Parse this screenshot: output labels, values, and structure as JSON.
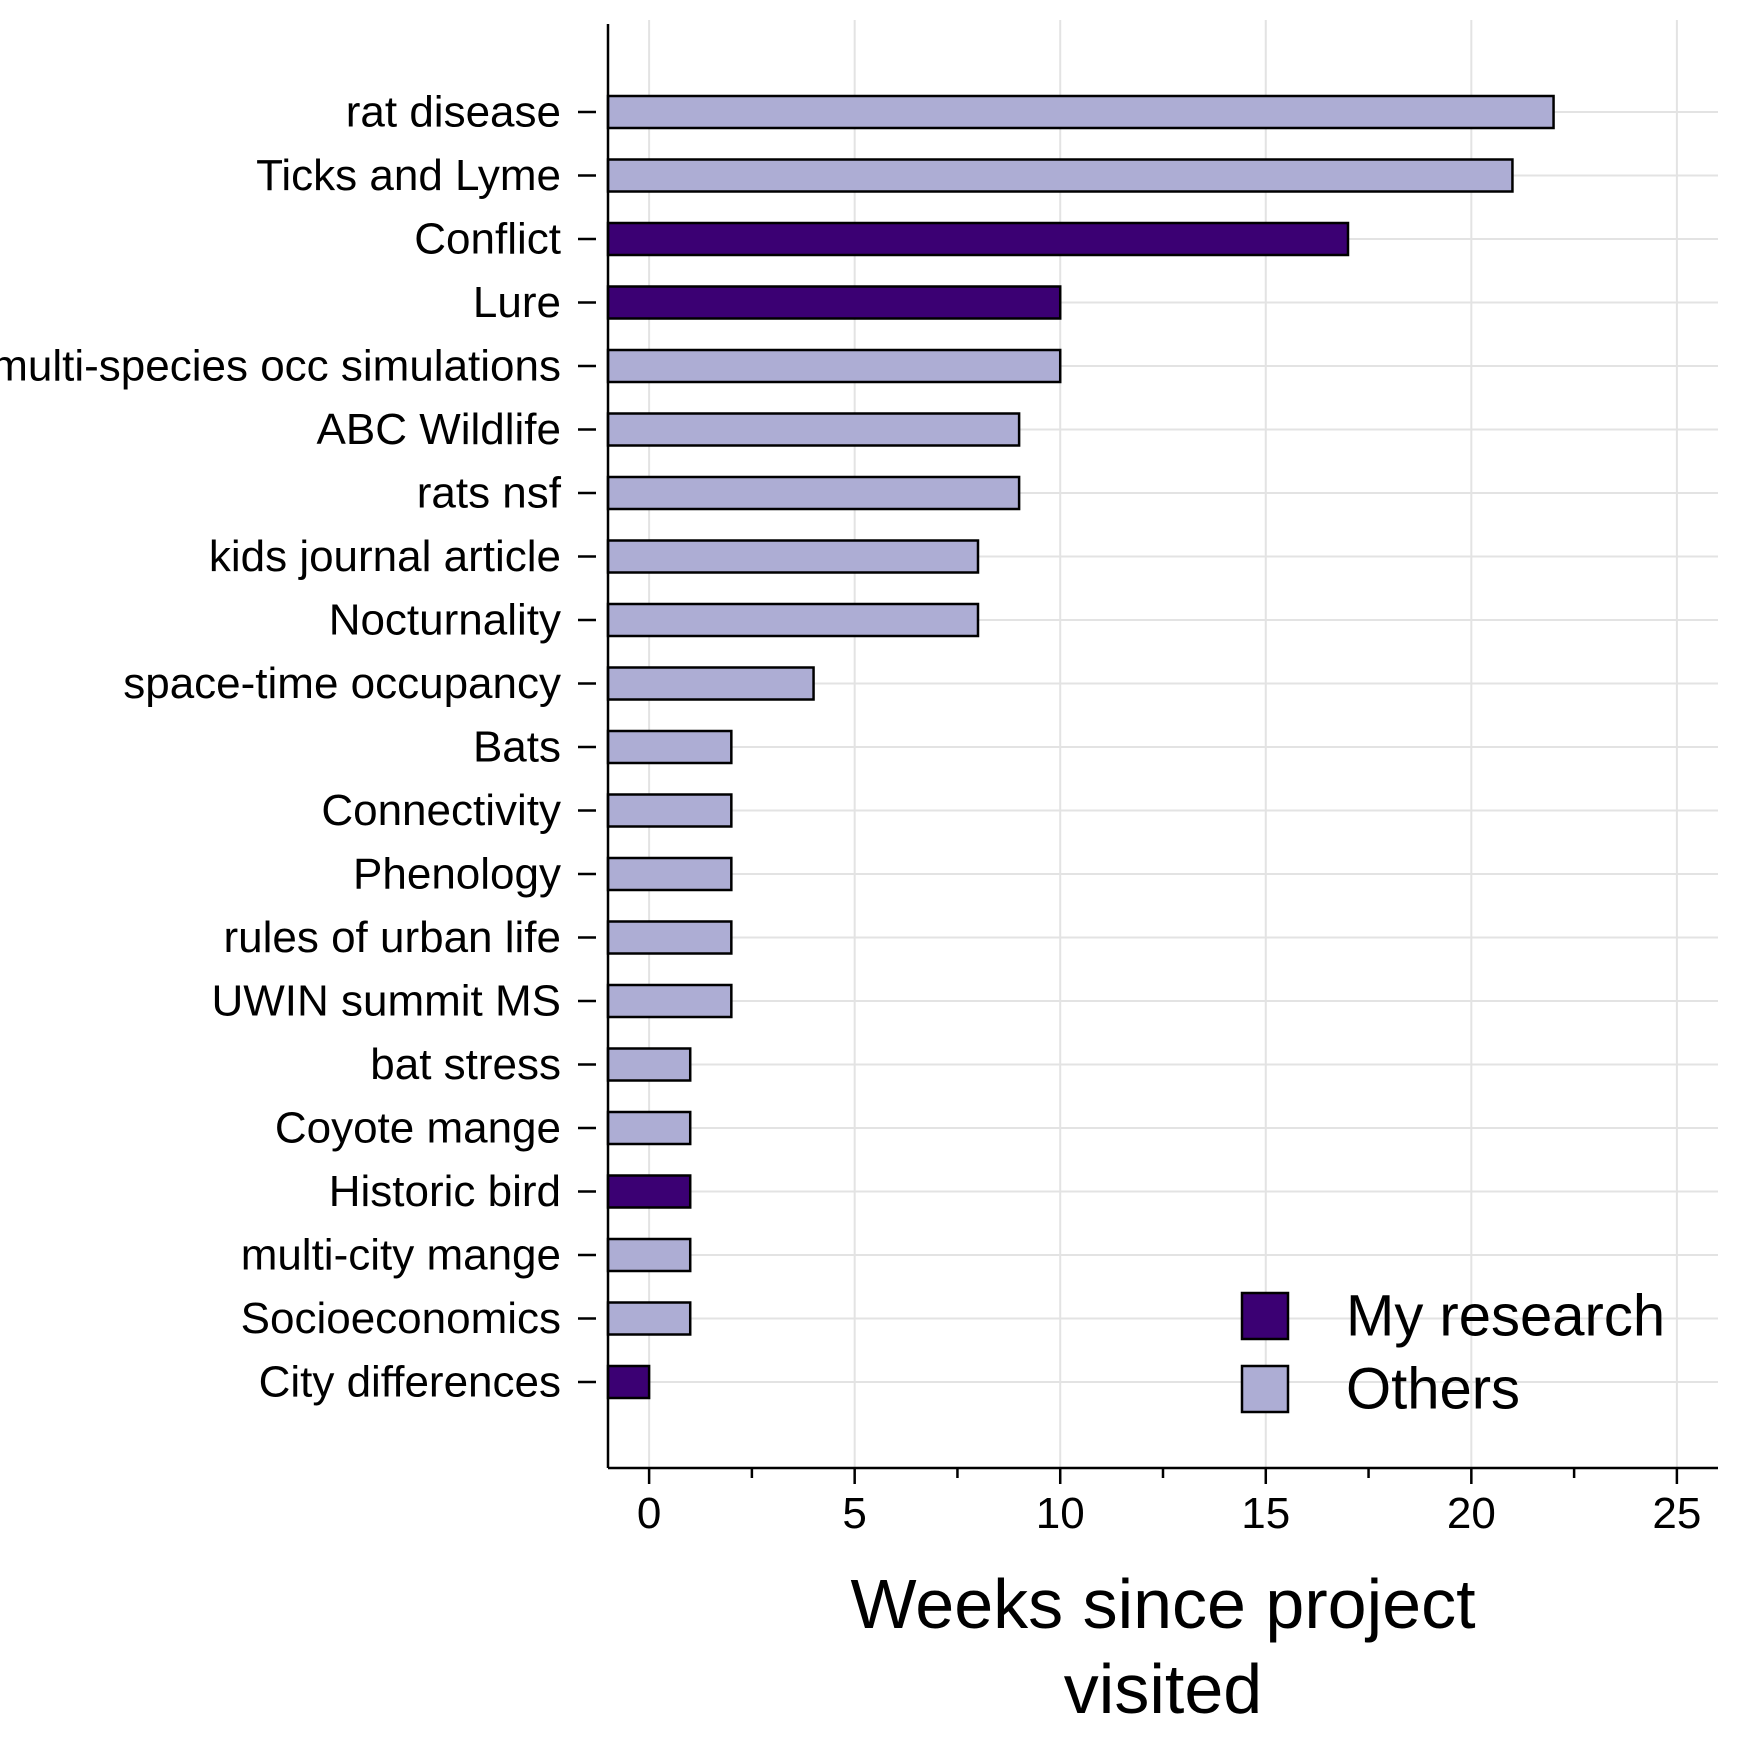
{
  "chart_data": {
    "type": "bar",
    "orientation": "horizontal",
    "categories": [
      "rat disease",
      "Ticks and Lyme",
      "Conflict",
      "Lure",
      "multi-species occ simulations",
      "ABC Wildlife",
      "rats nsf",
      "kids journal article",
      "Nocturnality",
      "space-time occupancy",
      "Bats",
      "Connectivity",
      "Phenology",
      "rules of urban life",
      "UWIN summit MS",
      "bat stress",
      "Coyote mange",
      "Historic bird",
      "multi-city mange",
      "Socioeconomics",
      "City differences"
    ],
    "values": [
      22,
      21,
      17,
      10,
      10,
      9,
      9,
      8,
      8,
      4,
      2,
      2,
      2,
      2,
      2,
      1,
      1,
      1,
      1,
      1,
      0
    ],
    "groups": [
      "Others",
      "Others",
      "My research",
      "My research",
      "Others",
      "Others",
      "Others",
      "Others",
      "Others",
      "Others",
      "Others",
      "Others",
      "Others",
      "Others",
      "Others",
      "Others",
      "Others",
      "My research",
      "Others",
      "Others",
      "My research"
    ],
    "series": [
      {
        "name": "My research",
        "color": "#3b0073"
      },
      {
        "name": "Others",
        "color": "#adadd4"
      }
    ],
    "xlabel_lines": [
      "Weeks since project",
      "visited"
    ],
    "ylabel": "",
    "xlim": [
      -1,
      26
    ],
    "xticks": [
      0,
      5,
      10,
      15,
      20,
      25
    ],
    "grid": true,
    "legend_position": "bottom-right"
  }
}
